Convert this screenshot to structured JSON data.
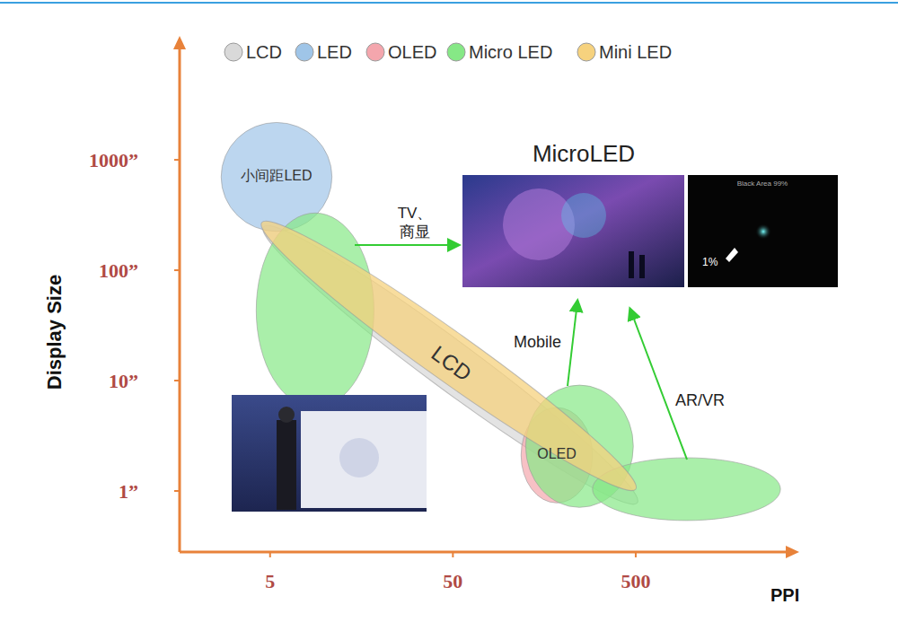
{
  "chart_data": {
    "type": "region",
    "xlabel": "PPI",
    "ylabel": "Display Size",
    "log": true,
    "grid": false,
    "legend": "top",
    "xlim": [
      1.6,
      3500
    ],
    "ylim": [
      0.28,
      11000
    ],
    "xticks": [
      5,
      50,
      500
    ],
    "yticks": [
      {
        "value": 1,
        "label": "1”"
      },
      {
        "value": 10,
        "label": "10”"
      },
      {
        "value": 100,
        "label": "100”"
      },
      {
        "value": 1000,
        "label": "1000”"
      }
    ],
    "series": [
      {
        "name": "LCD",
        "color": "#d9d9d9",
        "regions": [
          {
            "ppi": [
              4.6,
              510
            ],
            "size": [
              0.78,
              247
            ],
            "shape": "band",
            "label": "LCD"
          }
        ]
      },
      {
        "name": "LED",
        "color": "#9fc5e8",
        "regions": [
          {
            "ppi": [
              2.7,
              10.9
            ],
            "size": [
              225,
              2180
            ],
            "shape": "ellipse",
            "label": "小间距LED"
          }
        ]
      },
      {
        "name": "OLED",
        "color": "#f4a6ad",
        "regions": [
          {
            "ppi": [
              118,
              290
            ],
            "size": [
              0.78,
              5.7
            ],
            "shape": "ellipse",
            "label": "OLED"
          }
        ]
      },
      {
        "name": "Micro LED",
        "color": "#86e886",
        "regions": [
          {
            "ppi": [
              4.2,
              18.5
            ],
            "size": [
              5.7,
              330
            ],
            "shape": "ellipse"
          },
          {
            "ppi": [
              125,
              485
            ],
            "size": [
              0.71,
              9.1
            ],
            "shape": "ellipse"
          },
          {
            "ppi": [
              290,
              3095
            ],
            "size": [
              0.54,
              2.0
            ],
            "shape": "ellipse"
          }
        ]
      },
      {
        "name": "Mini LED",
        "color": "#f6d27e",
        "regions": [
          {
            "ppi": [
              4.5,
              500
            ],
            "size": [
              1.04,
              270
            ],
            "shape": "band"
          }
        ]
      }
    ],
    "annotations": [
      {
        "text": "TV、商显"
      },
      {
        "text": "Mobile"
      },
      {
        "text": "AR/VR"
      }
    ],
    "panel_title": "MicroLED",
    "image_texts": [
      "Black Area 99%",
      "1%"
    ]
  }
}
